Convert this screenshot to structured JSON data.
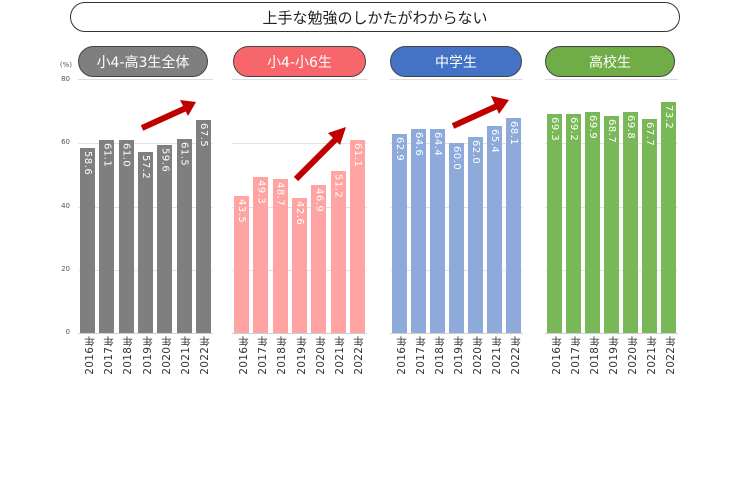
{
  "title": "上手な勉強のしかたがわからない",
  "y_unit": "(%)",
  "y_ticks": [
    "80",
    "60",
    "40",
    "20",
    "0"
  ],
  "panels": [
    {
      "label": "小4-高3生全体",
      "color": "#7f7f7f",
      "pill_color": "#7f7f7f",
      "years": [
        "2016年",
        "2017年",
        "2018年",
        "2019年",
        "2020年",
        "2021年",
        "2022年"
      ],
      "values": [
        "58.6",
        "61.1",
        "61.0",
        "57.2",
        "59.6",
        "61.5",
        "67.5"
      ]
    },
    {
      "label": "小4-小6生",
      "color": "#ffa3a3",
      "pill_color": "#f7666b",
      "years": [
        "2016年",
        "2017年",
        "2018年",
        "2019年",
        "2020年",
        "2021年",
        "2022年"
      ],
      "values": [
        "43.5",
        "49.3",
        "48.7",
        "42.6",
        "46.9",
        "51.2",
        "61.1"
      ]
    },
    {
      "label": "中学生",
      "color": "#8eaadb",
      "pill_color": "#4472c4",
      "years": [
        "2016年",
        "2017年",
        "2018年",
        "2019年",
        "2020年",
        "2021年",
        "2022年"
      ],
      "values": [
        "62.9",
        "64.6",
        "64.4",
        "60.0",
        "62.0",
        "65.4",
        "68.1"
      ]
    },
    {
      "label": "高校生",
      "color": "#78b856",
      "pill_color": "#70ad47",
      "years": [
        "2016年",
        "2017年",
        "2018年",
        "2019年",
        "2020年",
        "2021年",
        "2022年"
      ],
      "values": [
        "69.3",
        "69.2",
        "69.9",
        "68.7",
        "69.8",
        "67.7",
        "73.2"
      ]
    }
  ],
  "annotations": {
    "trend_arrow_color": "#c00000"
  },
  "chart_data": [
    {
      "type": "bar",
      "title": "上手な勉強のしかたがわからない — 小4-高3生全体",
      "categories": [
        "2016年",
        "2017年",
        "2018年",
        "2019年",
        "2020年",
        "2021年",
        "2022年"
      ],
      "values": [
        58.6,
        61.1,
        61.0,
        57.2,
        59.6,
        61.5,
        67.5
      ],
      "xlabel": "",
      "ylabel": "(%)",
      "ylim": [
        0,
        80
      ],
      "yticks": [
        0,
        20,
        40,
        60,
        80
      ],
      "grid": true,
      "annotation": "red upward trend arrow 2019→2022"
    },
    {
      "type": "bar",
      "title": "上手な勉強のしかたがわからない — 小4-小6生",
      "categories": [
        "2016年",
        "2017年",
        "2018年",
        "2019年",
        "2020年",
        "2021年",
        "2022年"
      ],
      "values": [
        43.5,
        49.3,
        48.7,
        42.6,
        46.9,
        51.2,
        61.1
      ],
      "xlabel": "",
      "ylabel": "(%)",
      "ylim": [
        0,
        80
      ],
      "grid": true,
      "annotation": "red upward trend arrow 2019→2022"
    },
    {
      "type": "bar",
      "title": "上手な勉強のしかたがわからない — 中学生",
      "categories": [
        "2016年",
        "2017年",
        "2018年",
        "2019年",
        "2020年",
        "2021年",
        "2022年"
      ],
      "values": [
        62.9,
        64.6,
        64.4,
        60.0,
        62.0,
        65.4,
        68.1
      ],
      "xlabel": "",
      "ylabel": "(%)",
      "ylim": [
        0,
        80
      ],
      "grid": true,
      "annotation": "red upward trend arrow 2019→2022"
    },
    {
      "type": "bar",
      "title": "上手な勉強のしかたがわからない — 高校生",
      "categories": [
        "2016年",
        "2017年",
        "2018年",
        "2019年",
        "2020年",
        "2021年",
        "2022年"
      ],
      "values": [
        69.3,
        69.2,
        69.9,
        68.7,
        69.8,
        67.7,
        73.2
      ],
      "xlabel": "",
      "ylabel": "(%)",
      "ylim": [
        0,
        80
      ],
      "grid": true
    }
  ]
}
